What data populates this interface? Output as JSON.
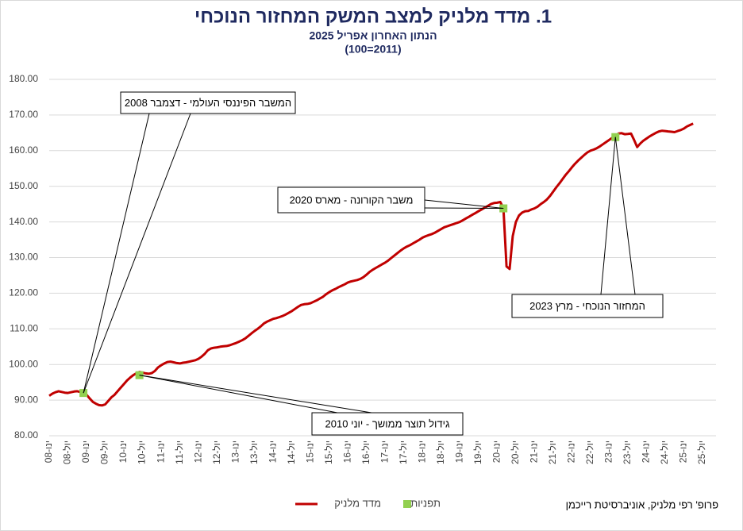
{
  "chart_data": {
    "type": "line",
    "title": "1. מדד מלניק למצב המשק המחזור הנוכחי",
    "subtitle": "הנתון האחרון אפריל 2025",
    "base_note": "(100=2011)",
    "source": "פרופ' רפי מלניק, אוניברסיטת רייכמן",
    "categories": [
      "ינו-08",
      null,
      null,
      null,
      null,
      null,
      "יול-08",
      null,
      null,
      null,
      null,
      null,
      "ינו-09",
      null,
      null,
      null,
      null,
      null,
      "יול-09",
      null,
      null,
      null,
      null,
      null,
      "ינו-10",
      null,
      null,
      null,
      null,
      null,
      "יול-10",
      null,
      null,
      null,
      null,
      null,
      "ינו-11",
      null,
      null,
      null,
      null,
      null,
      "יול-11",
      null,
      null,
      null,
      null,
      null,
      "ינו-12",
      null,
      null,
      null,
      null,
      null,
      "יול-12",
      null,
      null,
      null,
      null,
      null,
      "ינו-13",
      null,
      null,
      null,
      null,
      null,
      "יול-13",
      null,
      null,
      null,
      null,
      null,
      "ינו-14",
      null,
      null,
      null,
      null,
      null,
      "יול-14",
      null,
      null,
      null,
      null,
      null,
      "ינו-15",
      null,
      null,
      null,
      null,
      null,
      "יול-15",
      null,
      null,
      null,
      null,
      null,
      "ינו-16",
      null,
      null,
      null,
      null,
      null,
      "יול-16",
      null,
      null,
      null,
      null,
      null,
      "ינו-17",
      null,
      null,
      null,
      null,
      null,
      "יול-17",
      null,
      null,
      null,
      null,
      null,
      "ינו-18",
      null,
      null,
      null,
      null,
      null,
      "יול-18",
      null,
      null,
      null,
      null,
      null,
      "ינו-19",
      null,
      null,
      null,
      null,
      null,
      "יול-19",
      null,
      null,
      null,
      null,
      null,
      "ינו-20",
      null,
      null,
      null,
      null,
      null,
      "יול-20",
      null,
      null,
      null,
      null,
      null,
      "ינו-21",
      null,
      null,
      null,
      null,
      null,
      "יול-21",
      null,
      null,
      null,
      null,
      null,
      "ינו-22",
      null,
      null,
      null,
      null,
      null,
      "יול-22",
      null,
      null,
      null,
      null,
      null,
      "ינו-23",
      null,
      null,
      null,
      null,
      null,
      "יול-23",
      null,
      null,
      null,
      null,
      null,
      "ינו-24",
      null,
      null,
      null,
      null,
      null,
      "יול-24",
      null,
      null,
      null,
      null,
      null,
      "ינו-25",
      null,
      null,
      null,
      null,
      null,
      "יול-25"
    ],
    "series": [
      {
        "name": "מדד מלניק",
        "color": "#c00000",
        "values": [
          91.2,
          91.8,
          92.2,
          92.5,
          92.3,
          92.1,
          92,
          92.2,
          92.4,
          92.5,
          92.3,
          92.1,
          91.5,
          90.5,
          89.5,
          89,
          88.6,
          88.5,
          88.8,
          89.8,
          90.8,
          91.5,
          92.5,
          93.5,
          94.5,
          95.5,
          96.3,
          97,
          97.5,
          97.9,
          97.7,
          97.5,
          97.4,
          97.6,
          98.2,
          99.2,
          99.8,
          100.3,
          100.7,
          100.8,
          100.6,
          100.4,
          100.3,
          100.5,
          100.6,
          100.8,
          101,
          101.2,
          101.6,
          102.2,
          103,
          104,
          104.5,
          104.7,
          104.8,
          105,
          105.1,
          105.2,
          105.4,
          105.7,
          106,
          106.4,
          106.8,
          107.3,
          108,
          108.7,
          109.4,
          110,
          110.7,
          111.5,
          112,
          112.4,
          112.8,
          113,
          113.3,
          113.6,
          114,
          114.5,
          115,
          115.6,
          116.2,
          116.7,
          116.9,
          117,
          117.2,
          117.6,
          118,
          118.5,
          119,
          119.7,
          120.3,
          120.8,
          121.2,
          121.7,
          122.1,
          122.5,
          123,
          123.3,
          123.5,
          123.7,
          124,
          124.5,
          125.2,
          126,
          126.6,
          127.1,
          127.6,
          128.1,
          128.6,
          129.2,
          129.9,
          130.6,
          131.3,
          132,
          132.6,
          133.1,
          133.5,
          134,
          134.5,
          135,
          135.6,
          136,
          136.3,
          136.6,
          137,
          137.5,
          138,
          138.5,
          138.8,
          139.1,
          139.4,
          139.7,
          140,
          140.5,
          141,
          141.5,
          142,
          142.5,
          143,
          143.5,
          144,
          144.5,
          145,
          145.3,
          145.4,
          145.6,
          143.8,
          127.5,
          126.8,
          136,
          140,
          141.8,
          142.6,
          143,
          143.1,
          143.5,
          143.8,
          144.3,
          145,
          145.6,
          146.3,
          147.3,
          148.5,
          149.7,
          150.8,
          152,
          153.2,
          154.2,
          155.3,
          156.3,
          157.2,
          158,
          158.8,
          159.5,
          160,
          160.3,
          160.7,
          161.2,
          161.8,
          162.4,
          163,
          163.6,
          163.8,
          164.8,
          164.9,
          164.6,
          164.7,
          164.8,
          163,
          161,
          162,
          162.8,
          163.4,
          164,
          164.5,
          165,
          165.4,
          165.6,
          165.5,
          165.4,
          165.3,
          165.2,
          165.5,
          165.8,
          166.2,
          166.8,
          167.2,
          167.6,
          null,
          null,
          null
        ]
      },
      {
        "name": "תפניות",
        "color": "#92d050",
        "marker": "square",
        "values": [
          null,
          null,
          null,
          null,
          null,
          null,
          null,
          null,
          null,
          null,
          null,
          92,
          null,
          null,
          null,
          null,
          null,
          null,
          null,
          null,
          null,
          null,
          null,
          null,
          null,
          null,
          null,
          null,
          null,
          97,
          null,
          null,
          null,
          null,
          null,
          null,
          null,
          null,
          null,
          null,
          null,
          null,
          null,
          null,
          null,
          null,
          null,
          null,
          null,
          null,
          null,
          null,
          null,
          null,
          null,
          null,
          null,
          null,
          null,
          null,
          null,
          null,
          null,
          null,
          null,
          null,
          null,
          null,
          null,
          null,
          null,
          null,
          null,
          null,
          null,
          null,
          null,
          null,
          null,
          null,
          null,
          null,
          null,
          null,
          null,
          null,
          null,
          null,
          null,
          null,
          null,
          null,
          null,
          null,
          null,
          null,
          null,
          null,
          null,
          null,
          null,
          null,
          null,
          null,
          null,
          null,
          null,
          null,
          null,
          null,
          null,
          null,
          null,
          null,
          null,
          null,
          null,
          null,
          null,
          null,
          null,
          null,
          null,
          null,
          null,
          null,
          null,
          null,
          null,
          null,
          null,
          null,
          null,
          null,
          null,
          null,
          null,
          null,
          null,
          null,
          null,
          null,
          null,
          null,
          null,
          null,
          143.8,
          null,
          null,
          null,
          null,
          null,
          null,
          null,
          null,
          null,
          null,
          null,
          null,
          null,
          null,
          null,
          null,
          null,
          null,
          null,
          null,
          null,
          null,
          null,
          null,
          null,
          null,
          null,
          null,
          null,
          null,
          null,
          null,
          null,
          null,
          null,
          163.8,
          null,
          null,
          null,
          null,
          null,
          null,
          null,
          null,
          null,
          null,
          null,
          null,
          null,
          null,
          null,
          null,
          null,
          null,
          null,
          null,
          null,
          null,
          null,
          null,
          null,
          null,
          null,
          null
        ]
      }
    ],
    "annotations": [
      "המשבר הפיננסי העולמי - דצמבר 2008",
      "גידול תוצר ממושך - יוני 2010",
      "משבר הקורונה - מארס 2020",
      "המחזור הנוכחי - מרץ 2023"
    ],
    "ylim": [
      80,
      180
    ],
    "yticks": [
      {
        "value": 80,
        "label": "80.00"
      },
      {
        "value": 90,
        "label": "90.00"
      },
      {
        "value": 100,
        "label": "100.00"
      },
      {
        "value": 110,
        "label": "110.00"
      },
      {
        "value": 120,
        "label": "120.00"
      },
      {
        "value": 130,
        "label": "130.00"
      },
      {
        "value": 140,
        "label": "140.00"
      },
      {
        "value": 150,
        "label": "150.00"
      },
      {
        "value": 160,
        "label": "160.00"
      },
      {
        "value": 170,
        "label": "170.00"
      },
      {
        "value": 180,
        "label": "180.00"
      }
    ],
    "grid": true,
    "legend": "bottom"
  }
}
